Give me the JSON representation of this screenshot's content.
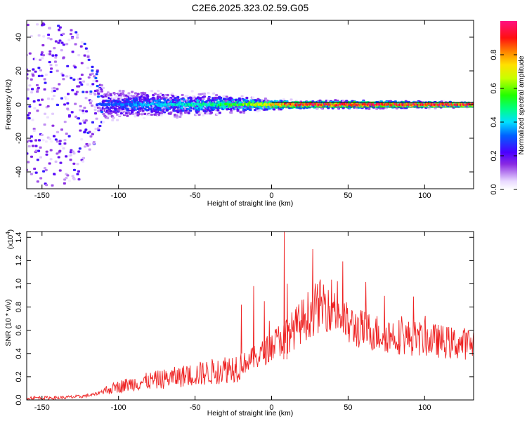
{
  "title": "C2E6.2025.323.02.59.G05",
  "chart_data": [
    {
      "type": "heatmap",
      "xlabel": "Height of straight line (km)",
      "ylabel": "Frequency (Hz)",
      "xlim": [
        -160,
        132
      ],
      "ylim": [
        -50,
        50
      ],
      "xticks": [
        -150,
        -100,
        -50,
        0,
        50,
        100
      ],
      "yticks": [
        -40,
        -20,
        0,
        20,
        40
      ],
      "colorbar": {
        "label": "Normalized spectral amplitude",
        "range": [
          0,
          1
        ],
        "ticks": [
          "0.0",
          "0.2",
          "0.4",
          "0.6",
          "0.8"
        ],
        "tick_values": [
          0.0,
          0.2,
          0.4,
          0.6,
          0.8
        ]
      },
      "description_points": [
        {
          "x": -150,
          "spread_hz": 50,
          "peak_amp": 0.2
        },
        {
          "x": -125,
          "spread_hz": 45,
          "peak_amp": 0.22
        },
        {
          "x": -110,
          "spread_hz": 12,
          "peak_amp": 0.3
        },
        {
          "x": -80,
          "spread_hz": 10,
          "peak_amp": 0.4
        },
        {
          "x": -40,
          "spread_hz": 8,
          "peak_amp": 0.5
        },
        {
          "x": -20,
          "spread_hz": 6,
          "peak_amp": 0.6
        },
        {
          "x": 0,
          "spread_hz": 4,
          "peak_amp": 0.8
        },
        {
          "x": 20,
          "spread_hz": 3,
          "peak_amp": 0.95
        },
        {
          "x": 60,
          "spread_hz": 3,
          "peak_amp": 0.95
        },
        {
          "x": 130,
          "spread_hz": 2,
          "peak_amp": 0.95
        }
      ]
    },
    {
      "type": "line",
      "xlabel": "Height of straight line (km)",
      "ylabel": "SNR (10 * v/v)",
      "yscale_label": "(x10",
      "yscale_exp": "4",
      "yscale_close": ")",
      "xlim": [
        -160,
        132
      ],
      "ylim": [
        0,
        1.45
      ],
      "xticks": [
        -150,
        -100,
        -50,
        0,
        50,
        100
      ],
      "yticks": [
        "0.0",
        "0.2",
        "0.4",
        "0.6",
        "0.8",
        "1.0",
        "1.2",
        "1.4"
      ],
      "ytick_values": [
        0.0,
        0.2,
        0.4,
        0.6,
        0.8,
        1.0,
        1.2,
        1.4
      ],
      "series": [
        {
          "name": "SNR",
          "color": "#ee2222",
          "x": [
            -160,
            -140,
            -125,
            -115,
            -110,
            -100,
            -90,
            -80,
            -70,
            -60,
            -50,
            -40,
            -30,
            -20,
            -15,
            -10,
            -5,
            0,
            5,
            10,
            15,
            20,
            25,
            30,
            35,
            40,
            45,
            50,
            60,
            70,
            80,
            90,
            100,
            110,
            120,
            132
          ],
          "y": [
            0.02,
            0.02,
            0.03,
            0.05,
            0.08,
            0.12,
            0.15,
            0.17,
            0.19,
            0.21,
            0.23,
            0.25,
            0.28,
            0.31,
            0.35,
            0.38,
            0.42,
            0.48,
            0.53,
            0.57,
            0.63,
            0.7,
            0.77,
            0.82,
            0.85,
            0.85,
            0.75,
            0.66,
            0.62,
            0.59,
            0.57,
            0.55,
            0.54,
            0.52,
            0.5,
            0.5
          ]
        }
      ],
      "spikes": [
        {
          "x": 8,
          "y": 1.45
        },
        {
          "x": -12,
          "y": 0.98
        },
        {
          "x": -20,
          "y": 0.82
        },
        {
          "x": 10,
          "y": 1.0
        },
        {
          "x": -5,
          "y": 0.85
        }
      ]
    }
  ]
}
